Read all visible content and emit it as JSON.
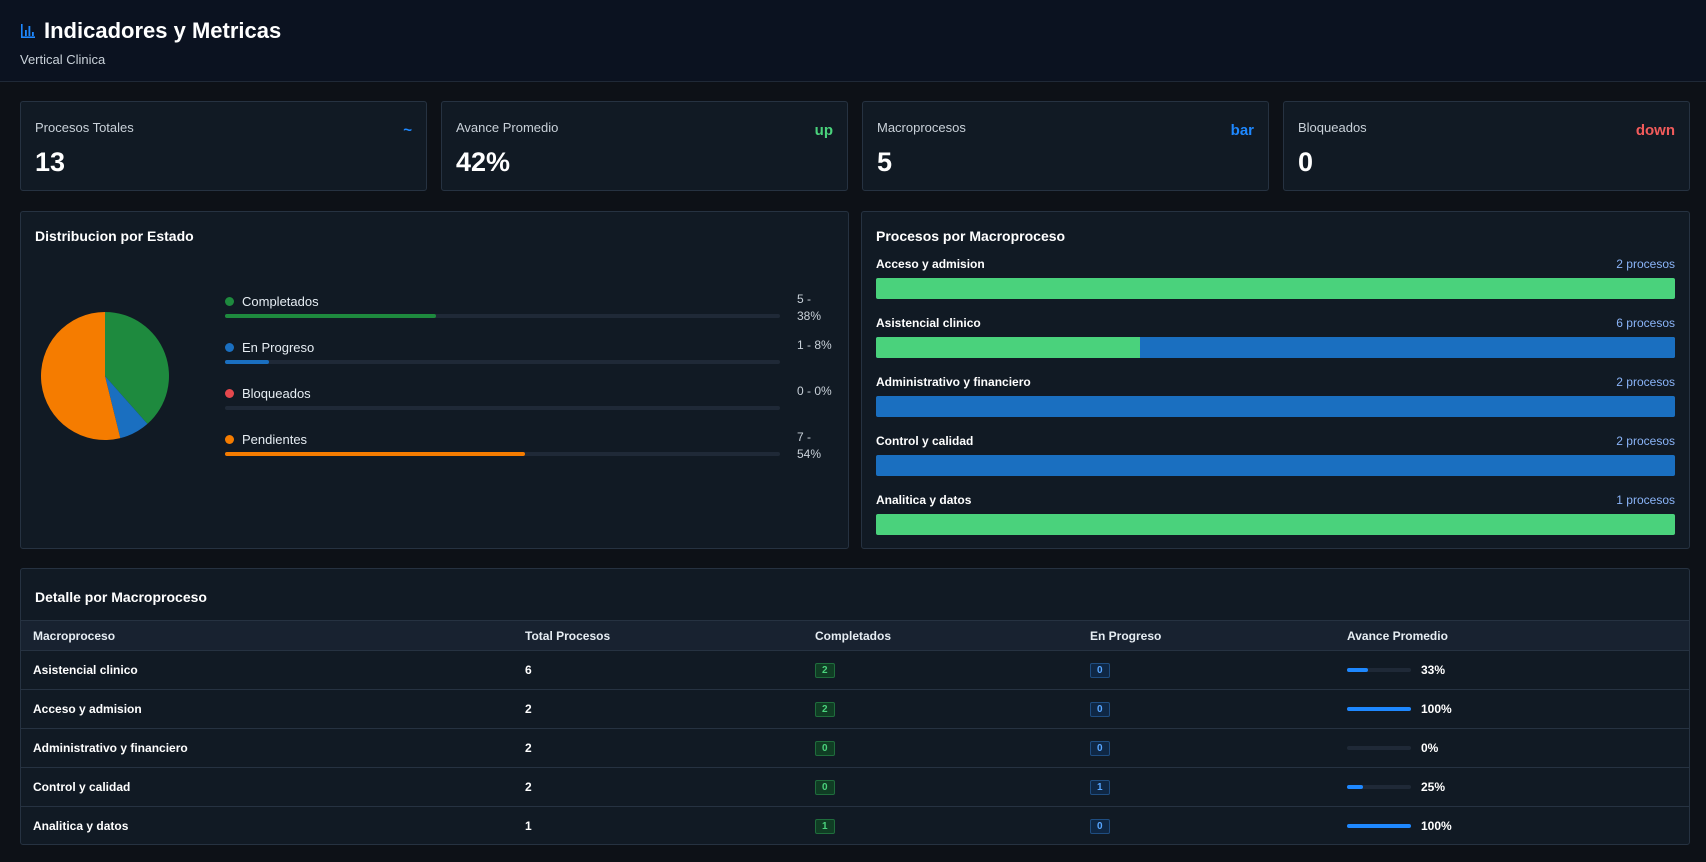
{
  "header": {
    "title": "Indicadores y Metricas",
    "subtitle": "Vertical Clinica",
    "icon": "bar-chart-icon"
  },
  "colors": {
    "green": "#1e8a3e",
    "blue": "#1a6fc0",
    "red": "#e5484d",
    "orange": "#f57c00",
    "bright_green": "#4ad27c",
    "accent_blue": "#1e88ff"
  },
  "cards": [
    {
      "label": "Procesos Totales",
      "value": "13",
      "trend": "~",
      "trend_color": "#1e88ff"
    },
    {
      "label": "Avance Promedio",
      "value": "42%",
      "trend": "up",
      "trend_color": "#4ad27c"
    },
    {
      "label": "Macroprocesos",
      "value": "5",
      "trend": "bar",
      "trend_color": "#1e88ff"
    },
    {
      "label": "Bloqueados",
      "value": "0",
      "trend": "down",
      "trend_color": "#f25b5b"
    }
  ],
  "distribution": {
    "title": "Distribucion por Estado",
    "items": [
      {
        "name": "Completados",
        "count": 5,
        "percent": 38,
        "display": "5 - 38%",
        "color": "#1e8a3e"
      },
      {
        "name": "En Progreso",
        "count": 1,
        "percent": 8,
        "display": "1 - 8%",
        "color": "#1a6fc0"
      },
      {
        "name": "Bloqueados",
        "count": 0,
        "percent": 0,
        "display": "0 - 0%",
        "color": "#e5484d"
      },
      {
        "name": "Pendientes",
        "count": 7,
        "percent": 54,
        "display": "7 - 54%",
        "color": "#f57c00"
      }
    ]
  },
  "macro_chart": {
    "title": "Procesos por Macroproceso",
    "items": [
      {
        "name": "Acceso y admision",
        "count_label": "2 procesos",
        "completed_pct": 100
      },
      {
        "name": "Asistencial clinico",
        "count_label": "6 procesos",
        "completed_pct": 33
      },
      {
        "name": "Administrativo y financiero",
        "count_label": "2 procesos",
        "completed_pct": 0
      },
      {
        "name": "Control y calidad",
        "count_label": "2 procesos",
        "completed_pct": 0
      },
      {
        "name": "Analitica y datos",
        "count_label": "1 procesos",
        "completed_pct": 100
      }
    ]
  },
  "detail": {
    "title": "Detalle por Macroproceso",
    "columns": [
      "Macroproceso",
      "Total Procesos",
      "Completados",
      "En Progreso",
      "Avance Promedio"
    ],
    "rows": [
      {
        "name": "Asistencial clinico",
        "total": "6",
        "completed": "2",
        "in_progress": "0",
        "avg": "33%",
        "avg_value": 33
      },
      {
        "name": "Acceso y admision",
        "total": "2",
        "completed": "2",
        "in_progress": "0",
        "avg": "100%",
        "avg_value": 100
      },
      {
        "name": "Administrativo y financiero",
        "total": "2",
        "completed": "0",
        "in_progress": "0",
        "avg": "0%",
        "avg_value": 0
      },
      {
        "name": "Control y calidad",
        "total": "2",
        "completed": "0",
        "in_progress": "1",
        "avg": "25%",
        "avg_value": 25
      },
      {
        "name": "Analitica y datos",
        "total": "1",
        "completed": "1",
        "in_progress": "0",
        "avg": "100%",
        "avg_value": 100
      }
    ]
  },
  "chart_data": {
    "type": "pie",
    "categories": [
      "Completados",
      "En Progreso",
      "Bloqueados",
      "Pendientes"
    ],
    "values": [
      5,
      1,
      0,
      7
    ],
    "title": ""
  }
}
